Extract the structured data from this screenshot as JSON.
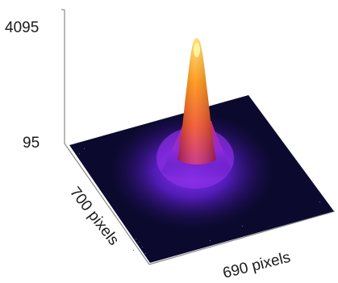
{
  "chart_data": {
    "type": "heatmap",
    "render": "3d-surface",
    "colormap": "fire",
    "z_ticks": [
      "4095",
      "95"
    ],
    "zlim": [
      95,
      4095
    ],
    "x_axis_label": "690 pixels",
    "y_axis_label": "700 pixels",
    "x_extent": 690,
    "y_extent": 700,
    "peak": {
      "x": 345,
      "y": 350,
      "value": 4095
    },
    "background_value": 95,
    "colors": {
      "background": "#0b0a2e",
      "mid": "#7a1cff",
      "hot": "#ff7a00",
      "peak": "#ffff80",
      "axis": "#8a8a8a"
    }
  }
}
